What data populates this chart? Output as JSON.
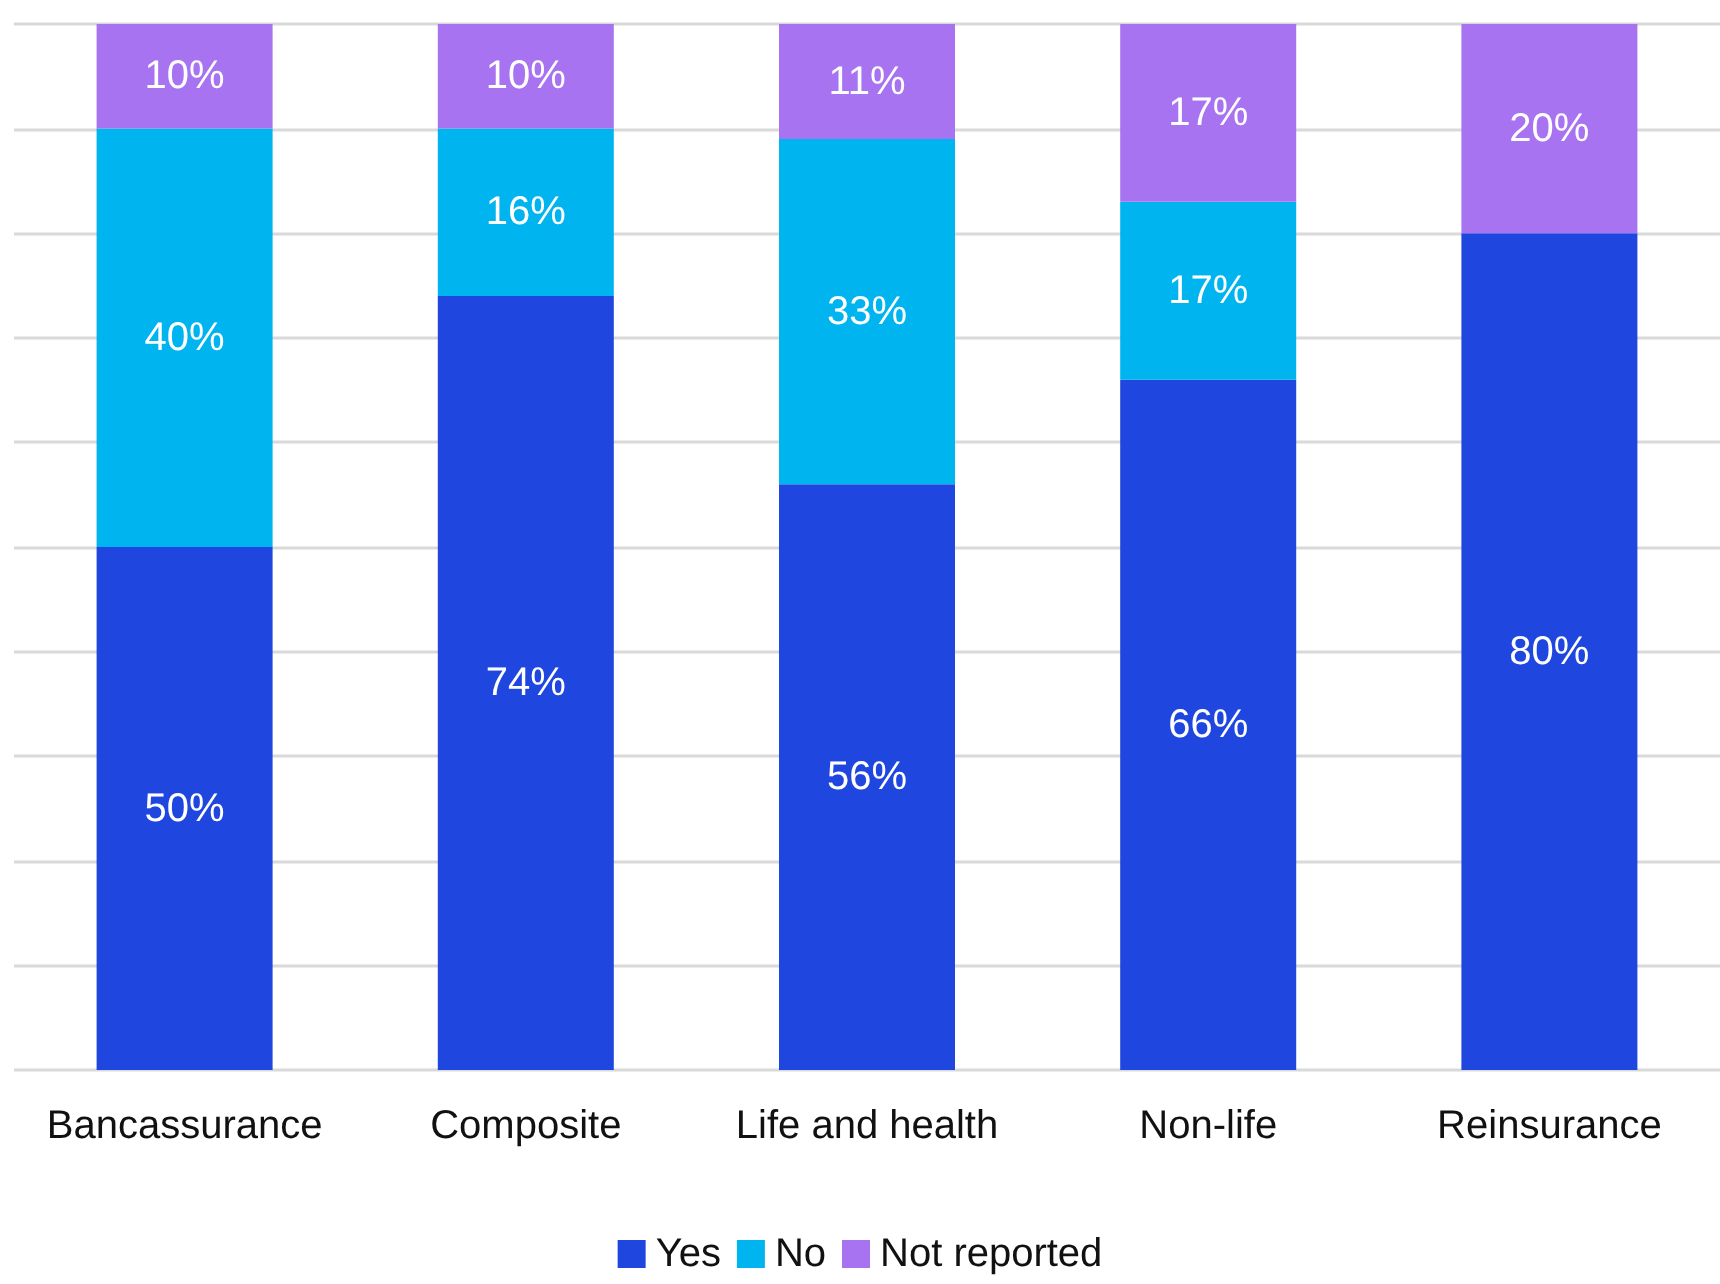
{
  "chart_data": {
    "type": "bar",
    "stacked": true,
    "categories": [
      "Bancassurance",
      "Composite",
      "Life and health",
      "Non-life",
      "Reinsurance"
    ],
    "series": [
      {
        "name": "Yes",
        "color": "#1f47e0",
        "values": [
          50,
          74,
          56,
          66,
          80
        ],
        "value_labels": [
          "50%",
          "74%",
          "56%",
          "66%",
          "80%"
        ]
      },
      {
        "name": "No",
        "color": "#00b4f0",
        "values": [
          40,
          16,
          33,
          17,
          0
        ],
        "value_labels": [
          "40%",
          "16%",
          "33%",
          "17%",
          null
        ]
      },
      {
        "name": "Not reported",
        "color": "#a873f0",
        "values": [
          10,
          10,
          11,
          17,
          20
        ],
        "value_labels": [
          "10%",
          "10%",
          "11%",
          "17%",
          "20%"
        ]
      }
    ],
    "ylim": [
      0,
      100
    ],
    "yticks": [
      {
        "value": 0,
        "label": null
      },
      {
        "value": 10,
        "label": null
      },
      {
        "value": 20,
        "label": null
      },
      {
        "value": 30,
        "label": null
      },
      {
        "value": 40,
        "label": null
      },
      {
        "value": 50,
        "label": null
      },
      {
        "value": 60,
        "label": null
      },
      {
        "value": 70,
        "label": null
      },
      {
        "value": 80,
        "label": null
      },
      {
        "value": 90,
        "label": null
      },
      {
        "value": 100,
        "label": null
      }
    ],
    "tick_labels": "x",
    "grid": "y",
    "legend": "bottom"
  }
}
